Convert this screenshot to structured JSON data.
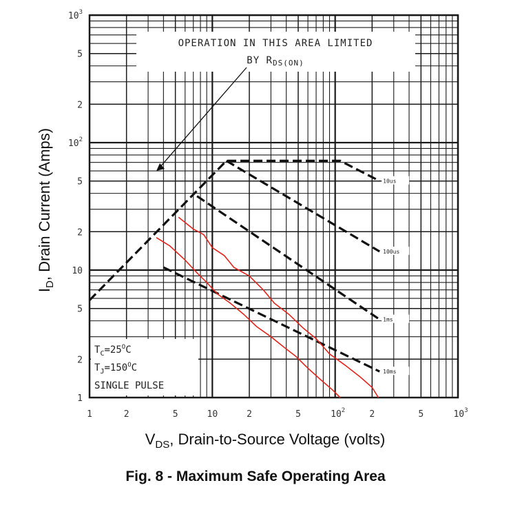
{
  "caption": "Fig. 8 - Maximum Safe Operating Area",
  "colors": {
    "grid": "#1a1a1a",
    "boundary": "#111111",
    "measured": "#e0261c"
  },
  "chart_data": {
    "type": "line",
    "title": "",
    "xlabel": "V_DS, Drain-to-Source Voltage (volts)",
    "ylabel": "I_D, Drain Current (Amps)",
    "xscale": "log",
    "yscale": "log",
    "xlim": [
      1,
      1000
    ],
    "ylim": [
      1,
      1000
    ],
    "grid": true,
    "x_ticks": [
      {
        "value": 1,
        "base": "1",
        "exp": ""
      },
      {
        "value": 2,
        "base": "2",
        "exp": ""
      },
      {
        "value": 5,
        "base": "5",
        "exp": ""
      },
      {
        "value": 10,
        "base": "10",
        "exp": ""
      },
      {
        "value": 20,
        "base": "2",
        "exp": ""
      },
      {
        "value": 50,
        "base": "5",
        "exp": ""
      },
      {
        "value": 100,
        "base": "10",
        "exp": "2"
      },
      {
        "value": 200,
        "base": "2",
        "exp": ""
      },
      {
        "value": 500,
        "base": "5",
        "exp": ""
      },
      {
        "value": 1000,
        "base": "10",
        "exp": "3"
      }
    ],
    "y_ticks": [
      {
        "value": 1,
        "base": "1",
        "exp": ""
      },
      {
        "value": 2,
        "base": "2",
        "exp": ""
      },
      {
        "value": 5,
        "base": "5",
        "exp": ""
      },
      {
        "value": 10,
        "base": "10",
        "exp": ""
      },
      {
        "value": 20,
        "base": "2",
        "exp": ""
      },
      {
        "value": 50,
        "base": "5",
        "exp": ""
      },
      {
        "value": 100,
        "base": "10",
        "exp": "2"
      },
      {
        "value": 200,
        "base": "2",
        "exp": ""
      },
      {
        "value": 500,
        "base": "5",
        "exp": ""
      },
      {
        "value": 1000,
        "base": "10",
        "exp": "3"
      }
    ],
    "annotation": {
      "line1": "OPERATION IN THIS AREA LIMITED",
      "line2_prefix": "BY R",
      "line2_sub": "DS(ON)",
      "arrow_to": {
        "x": 3.5,
        "y": 60
      }
    },
    "conditions": [
      "T_C=25°C",
      "T_J=150°C",
      "SINGLE PULSE"
    ],
    "series": [
      {
        "name": "10us",
        "style": "dashed",
        "points": [
          [
            1,
            5.8
          ],
          [
            13,
            72
          ],
          [
            110,
            72
          ],
          [
            230,
            50
          ]
        ]
      },
      {
        "name": "100us",
        "style": "dashed",
        "points": [
          [
            13,
            72
          ],
          [
            230,
            14
          ]
        ]
      },
      {
        "name": "1ms",
        "style": "dashed",
        "points": [
          [
            7.5,
            38
          ],
          [
            230,
            4.1
          ]
        ]
      },
      {
        "name": "10ms",
        "style": "dashed",
        "points": [
          [
            4,
            10.5
          ],
          [
            230,
            1.6
          ]
        ]
      },
      {
        "name": "",
        "style": "measured",
        "points": [
          [
            5.3,
            26
          ],
          [
            7,
            21
          ],
          [
            8.5,
            19
          ],
          [
            10,
            15
          ],
          [
            12.5,
            13
          ],
          [
            15,
            10.5
          ],
          [
            20,
            9
          ],
          [
            26,
            7
          ],
          [
            32,
            5.5
          ],
          [
            42,
            4.5
          ],
          [
            55,
            3.5
          ],
          [
            70,
            2.9
          ],
          [
            90,
            2.2
          ],
          [
            120,
            1.8
          ],
          [
            160,
            1.45
          ],
          [
            200,
            1.2
          ],
          [
            225,
            1.0
          ]
        ]
      },
      {
        "name": "",
        "style": "measured",
        "points": [
          [
            3.5,
            18
          ],
          [
            4.5,
            15.5
          ],
          [
            6,
            12
          ],
          [
            7.5,
            9.5
          ],
          [
            9,
            8
          ],
          [
            11,
            6.5
          ],
          [
            14,
            5.5
          ],
          [
            18,
            4.5
          ],
          [
            23,
            3.6
          ],
          [
            30,
            3
          ],
          [
            38,
            2.5
          ],
          [
            48,
            2.1
          ],
          [
            60,
            1.7
          ],
          [
            75,
            1.4
          ],
          [
            95,
            1.15
          ],
          [
            110,
            1.0
          ]
        ]
      }
    ]
  },
  "figure_labels": {
    "x_title_main": "V",
    "x_title_sub": "DS",
    "x_title_rest": ", Drain-to-Source Voltage (volts)",
    "y_title_main": "I",
    "y_title_sub": "D",
    "y_title_rest": ", Drain Current (Amps)",
    "cond_tc_pre": "T",
    "cond_tc_sub": "C",
    "cond_tc_val": "=25",
    "cond_tc_exp": "O",
    "cond_tc_unit": "C",
    "cond_tj_pre": "T",
    "cond_tj_sub": "J",
    "cond_tj_val": "=150",
    "cond_tj_exp": "O",
    "cond_tj_unit": "C",
    "cond_pulse": "SINGLE PULSE"
  }
}
